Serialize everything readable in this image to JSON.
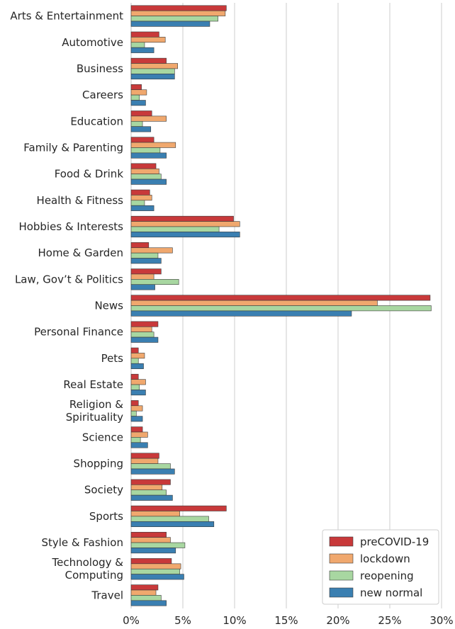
{
  "chart_data": {
    "type": "bar",
    "orientation": "horizontal",
    "categories": [
      "Arts & Entertainment",
      "Automotive",
      "Business",
      "Careers",
      "Education",
      "Family & Parenting",
      "Food & Drink",
      "Health & Fitness",
      "Hobbies & Interests",
      "Home & Garden",
      "Law, Gov’t & Politics",
      "News",
      "Personal Finance",
      "Pets",
      "Real Estate",
      "Religion & Spirituality",
      "Science",
      "Shopping",
      "Society",
      "Sports",
      "Style & Fashion",
      "Technology & Computing",
      "Travel"
    ],
    "category_lines": [
      [
        "Arts & Entertainment"
      ],
      [
        "Automotive"
      ],
      [
        "Business"
      ],
      [
        "Careers"
      ],
      [
        "Education"
      ],
      [
        "Family & Parenting"
      ],
      [
        "Food & Drink"
      ],
      [
        "Health & Fitness"
      ],
      [
        "Hobbies & Interests"
      ],
      [
        "Home & Garden"
      ],
      [
        "Law, Gov’t & Politics"
      ],
      [
        "News"
      ],
      [
        "Personal Finance"
      ],
      [
        "Pets"
      ],
      [
        "Real Estate"
      ],
      [
        "Religion &",
        "Spirituality"
      ],
      [
        "Science"
      ],
      [
        "Shopping"
      ],
      [
        "Society"
      ],
      [
        "Sports"
      ],
      [
        "Style & Fashion"
      ],
      [
        "Technology &",
        "Computing"
      ],
      [
        "Travel"
      ]
    ],
    "series": [
      {
        "name": "preCOVID-19",
        "color": "#c8393a",
        "values": [
          9.2,
          2.7,
          3.4,
          1.0,
          2.0,
          2.2,
          2.4,
          1.8,
          9.9,
          1.7,
          2.9,
          28.9,
          2.6,
          0.7,
          0.7,
          0.7,
          1.1,
          2.7,
          3.8,
          9.2,
          3.4,
          3.9,
          2.6
        ]
      },
      {
        "name": "lockdown",
        "color": "#f0a86e",
        "values": [
          9.1,
          3.3,
          4.5,
          1.5,
          3.4,
          4.3,
          2.7,
          2.0,
          10.5,
          4.0,
          2.2,
          23.8,
          2.0,
          1.3,
          1.4,
          1.1,
          1.6,
          2.6,
          3.0,
          4.7,
          3.8,
          4.8,
          2.4
        ]
      },
      {
        "name": "reopening",
        "color": "#a8d7a1",
        "values": [
          8.4,
          1.3,
          4.2,
          0.8,
          1.1,
          2.8,
          2.9,
          1.3,
          8.5,
          2.6,
          4.6,
          29.0,
          2.2,
          0.7,
          0.8,
          0.5,
          0.9,
          3.8,
          3.4,
          7.5,
          5.2,
          4.7,
          2.9
        ]
      },
      {
        "name": "new normal",
        "color": "#3a7fb1",
        "values": [
          7.6,
          2.2,
          4.2,
          1.4,
          1.9,
          3.4,
          3.4,
          2.2,
          10.5,
          2.9,
          2.3,
          21.3,
          2.6,
          1.2,
          1.4,
          1.1,
          1.6,
          4.2,
          4.0,
          8.0,
          4.3,
          5.1,
          3.4
        ]
      }
    ],
    "x_ticks": [
      "0%",
      "5%",
      "10%",
      "15%",
      "20%",
      "25%",
      "30%"
    ],
    "x_tick_values": [
      0,
      5,
      10,
      15,
      20,
      25,
      30
    ],
    "xlim": [
      0,
      30
    ],
    "grid": "vertical",
    "legend": {
      "position": "lower-right",
      "entries": [
        "preCOVID-19",
        "lockdown",
        "reopening",
        "new normal"
      ]
    },
    "title": "",
    "xlabel": "",
    "ylabel": ""
  }
}
